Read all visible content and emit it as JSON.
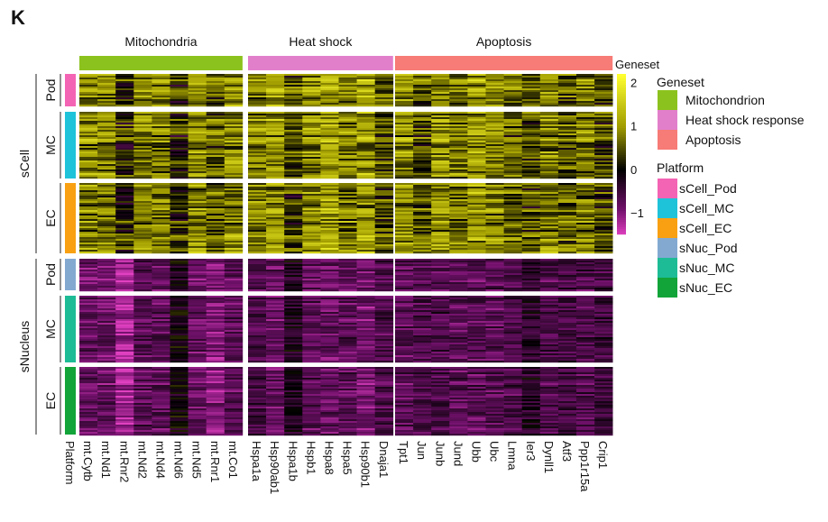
{
  "panel_label": "K",
  "chart_data": {
    "type": "heatmap",
    "column_groups": [
      {
        "label": "Mitochondria",
        "geneset": "Mitochondrion",
        "genes": [
          "mt.Cytb",
          "mt.Nd1",
          "mt.Rnr2",
          "mt.Nd2",
          "mt.Nd4",
          "mt.Nd6",
          "mt.Nd5",
          "mt.Rnr1",
          "mt.Co1"
        ]
      },
      {
        "label": "Heat shock",
        "geneset": "Heat shock response",
        "genes": [
          "Hspa1a",
          "Hsp90ab1",
          "Hspa1b",
          "Hspb1",
          "Hspa8",
          "Hspa5",
          "Hsp90b1",
          "Dnaja1"
        ]
      },
      {
        "label": "Apoptosis",
        "geneset": "Apoptosis",
        "genes": [
          "Tpt1",
          "Jun",
          "Junb",
          "Jund",
          "Ubb",
          "Ubc",
          "Lmna",
          "Ier3",
          "Dynll1",
          "Atf3",
          "Ppp1r15a",
          "Crip1"
        ]
      }
    ],
    "row_groups": [
      {
        "label": "sCell",
        "blocks": [
          {
            "label": "Pod",
            "platform": "sCell_Pod"
          },
          {
            "label": "MC",
            "platform": "sCell_MC"
          },
          {
            "label": "EC",
            "platform": "sCell_EC"
          }
        ]
      },
      {
        "label": "sNucleus",
        "blocks": [
          {
            "label": "Pod",
            "platform": "sNuc_Pod"
          },
          {
            "label": "MC",
            "platform": "sNuc_MC"
          },
          {
            "label": "EC",
            "platform": "sNuc_EC"
          }
        ]
      }
    ],
    "approx_column_means": {
      "sCell": [
        0.8,
        0.8,
        0.2,
        0.8,
        0.8,
        0.3,
        0.9,
        0.6,
        0.9,
        0.8,
        1.0,
        0.4,
        0.9,
        1.1,
        0.8,
        1.0,
        0.5,
        0.9,
        0.5,
        0.9,
        0.8,
        1.0,
        0.8,
        0.6,
        0.5,
        0.8,
        0.6,
        0.7,
        0.4
      ],
      "sNucleus": [
        -0.8,
        -0.8,
        -1.2,
        -0.7,
        -0.7,
        -0.1,
        -0.8,
        -1.0,
        -0.7,
        -0.6,
        -0.8,
        -0.2,
        -0.7,
        -0.8,
        -0.7,
        -0.9,
        -0.6,
        -0.7,
        -0.6,
        -0.6,
        -0.7,
        -0.7,
        -0.7,
        -0.6,
        -0.3,
        -0.6,
        -0.5,
        -0.6,
        -0.5
      ]
    },
    "colorbar": {
      "ticks": [
        "2",
        "1",
        "0",
        "−1"
      ],
      "range": [
        -1.5,
        2.2
      ],
      "colors": [
        "#e040c0",
        "#70106a",
        "#000000",
        "#a09c00",
        "#ffff30"
      ]
    },
    "platform_row_label": "Platform",
    "geneset_bar_label": "Geneset",
    "legend": {
      "geneset_title": "Geneset",
      "geneset": [
        {
          "label": "Mitochondrion",
          "color": "#8cc21e"
        },
        {
          "label": "Heat shock response",
          "color": "#e27fcb"
        },
        {
          "label": "Apoptosis",
          "color": "#f77b76"
        }
      ],
      "platform_title": "Platform",
      "platform": [
        {
          "label": "sCell_Pod",
          "color": "#f464b4"
        },
        {
          "label": "sCell_MC",
          "color": "#1fc3d9"
        },
        {
          "label": "sCell_EC",
          "color": "#f8a012"
        },
        {
          "label": "sNuc_Pod",
          "color": "#83a9d1"
        },
        {
          "label": "sNuc_MC",
          "color": "#1ebc96"
        },
        {
          "label": "sNuc_EC",
          "color": "#12a438"
        }
      ]
    }
  }
}
